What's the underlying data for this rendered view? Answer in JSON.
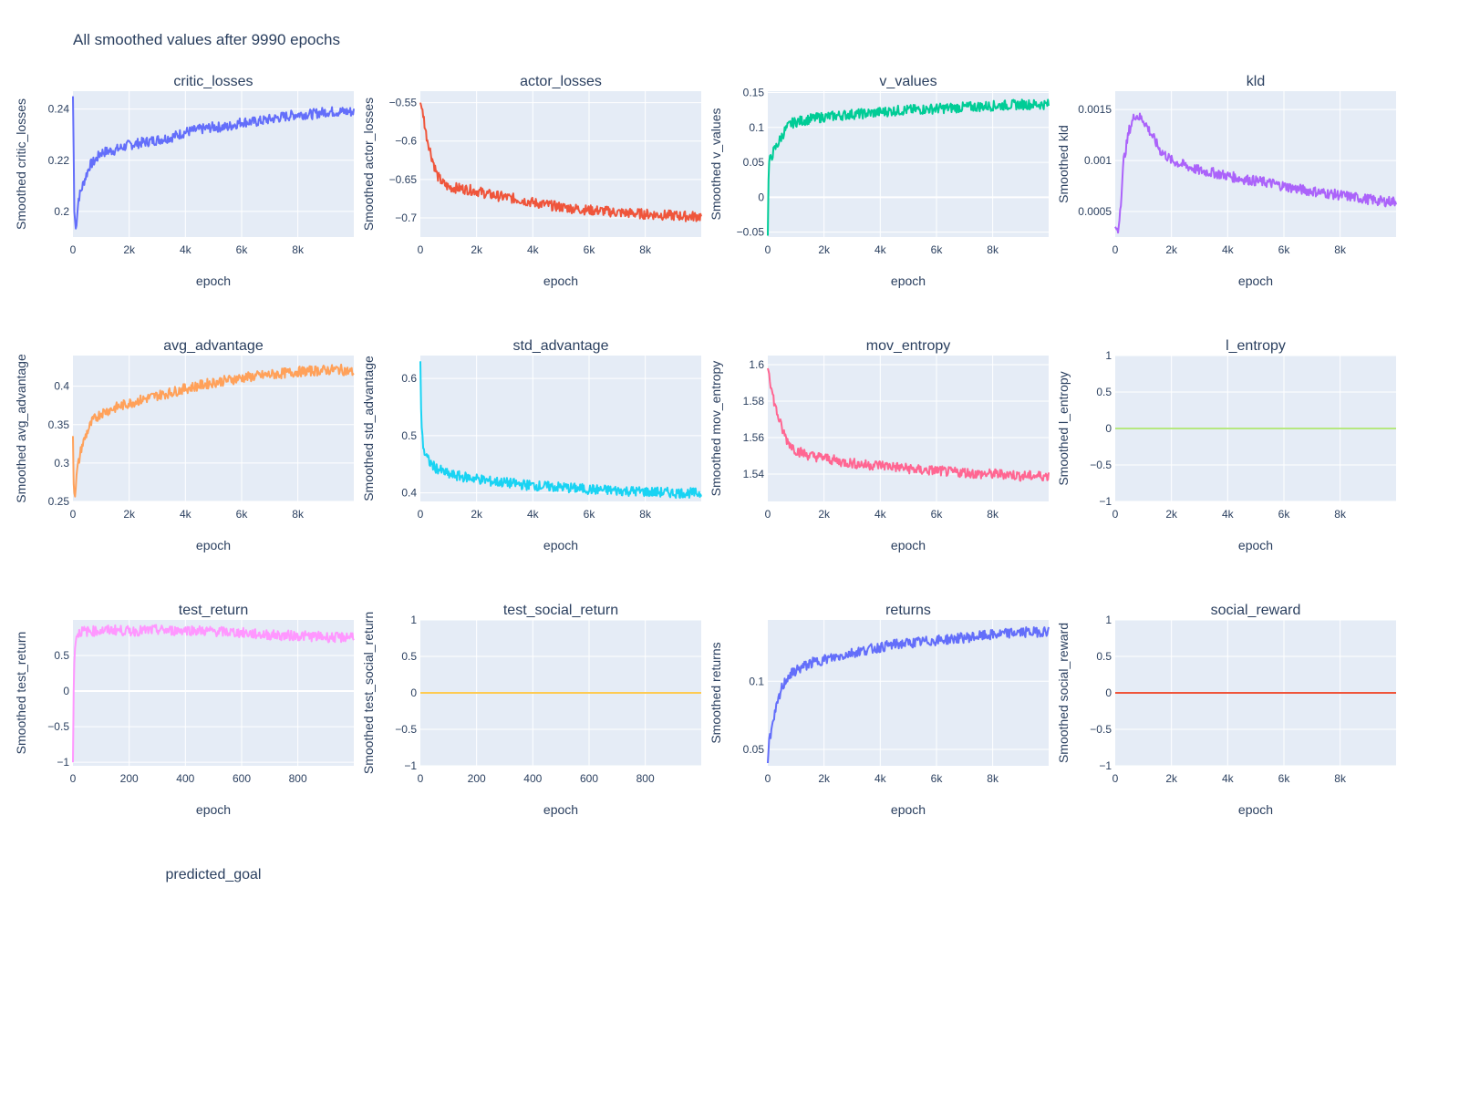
{
  "title": "All smoothed values after 9990 epochs",
  "chart_data": [
    {
      "type": "line",
      "title": "critic_losses",
      "xlabel": "epoch",
      "ylabel": "Smoothed critic_losses",
      "color": "#636efa",
      "xlim": [
        0,
        9990
      ],
      "ylim": [
        0.19,
        0.247
      ],
      "xticks": [
        0,
        2000,
        4000,
        6000,
        8000
      ],
      "xtick_labels": [
        "0",
        "2k",
        "4k",
        "6k",
        "8k"
      ],
      "yticks": [
        0.2,
        0.22,
        0.24
      ],
      "ytick_labels": [
        "0.2",
        "0.22",
        "0.24"
      ],
      "series": [
        {
          "x": [
            0,
            50,
            100,
            200,
            400,
            600,
            800,
            1000,
            1500,
            2000,
            2500,
            3000,
            3500,
            4000,
            4500,
            5000,
            5500,
            6000,
            6500,
            7000,
            7500,
            8000,
            8500,
            9000,
            9500,
            9990
          ],
          "y": [
            0.245,
            0.2,
            0.193,
            0.205,
            0.212,
            0.218,
            0.22,
            0.223,
            0.224,
            0.226,
            0.227,
            0.228,
            0.229,
            0.231,
            0.232,
            0.233,
            0.233,
            0.235,
            0.235,
            0.236,
            0.237,
            0.238,
            0.238,
            0.239,
            0.239,
            0.239
          ]
        }
      ]
    },
    {
      "type": "line",
      "title": "actor_losses",
      "xlabel": "epoch",
      "ylabel": "Smoothed actor_losses",
      "color": "#EF553B",
      "xlim": [
        0,
        9990
      ],
      "ylim": [
        -0.725,
        -0.535
      ],
      "xticks": [
        0,
        2000,
        4000,
        6000,
        8000
      ],
      "xtick_labels": [
        "0",
        "2k",
        "4k",
        "6k",
        "8k"
      ],
      "yticks": [
        -0.55,
        -0.6,
        -0.65,
        -0.7
      ],
      "ytick_labels": [
        "−0.55",
        "−0.6",
        "−0.65",
        "−0.7"
      ],
      "series": [
        {
          "x": [
            0,
            100,
            200,
            400,
            600,
            800,
            1000,
            1500,
            2000,
            2500,
            3000,
            3500,
            4000,
            4500,
            5000,
            5500,
            6000,
            6500,
            7000,
            7500,
            8000,
            8500,
            9000,
            9500,
            9990
          ],
          "y": [
            -0.55,
            -0.565,
            -0.59,
            -0.62,
            -0.645,
            -0.655,
            -0.66,
            -0.662,
            -0.665,
            -0.67,
            -0.673,
            -0.676,
            -0.68,
            -0.683,
            -0.686,
            -0.688,
            -0.69,
            -0.691,
            -0.693,
            -0.694,
            -0.695,
            -0.696,
            -0.697,
            -0.698,
            -0.698
          ]
        }
      ]
    },
    {
      "type": "line",
      "title": "v_values",
      "xlabel": "epoch",
      "ylabel": "Smoothed v_values",
      "color": "#00cc96",
      "xlim": [
        0,
        9990
      ],
      "ylim": [
        -0.057,
        0.152
      ],
      "xticks": [
        0,
        2000,
        4000,
        6000,
        8000
      ],
      "xtick_labels": [
        "0",
        "2k",
        "4k",
        "6k",
        "8k"
      ],
      "yticks": [
        0.15,
        0.1,
        0.05,
        0,
        -0.05
      ],
      "ytick_labels": [
        "0.15",
        "0.1",
        "0.05",
        "0",
        "−0.05"
      ],
      "series": [
        {
          "x": [
            0,
            20,
            50,
            100,
            200,
            400,
            600,
            800,
            1000,
            1500,
            2000,
            2500,
            3000,
            3500,
            4000,
            4500,
            5000,
            5500,
            6000,
            6500,
            7000,
            7500,
            8000,
            8500,
            9000,
            9500,
            9990
          ],
          "y": [
            -0.055,
            0.02,
            0.05,
            0.055,
            0.065,
            0.08,
            0.095,
            0.105,
            0.108,
            0.112,
            0.115,
            0.117,
            0.119,
            0.12,
            0.122,
            0.124,
            0.125,
            0.126,
            0.127,
            0.128,
            0.129,
            0.13,
            0.131,
            0.132,
            0.133,
            0.133,
            0.133
          ]
        }
      ]
    },
    {
      "type": "line",
      "title": "kld",
      "xlabel": "epoch",
      "ylabel": "Smoothed kld",
      "color": "#ab63fa",
      "xlim": [
        0,
        9990
      ],
      "ylim": [
        0.00025,
        0.00168
      ],
      "xticks": [
        0,
        2000,
        4000,
        6000,
        8000
      ],
      "xtick_labels": [
        "0",
        "2k",
        "4k",
        "6k",
        "8k"
      ],
      "yticks": [
        0.0015,
        0.001,
        0.0005
      ],
      "ytick_labels": [
        "0.0015",
        "0.001",
        "0.0005"
      ],
      "series": [
        {
          "x": [
            0,
            100,
            200,
            300,
            500,
            700,
            1000,
            1300,
            1600,
            2000,
            2500,
            3000,
            3500,
            4000,
            4500,
            5000,
            5500,
            6000,
            6500,
            7000,
            7500,
            8000,
            8500,
            9000,
            9500,
            9990
          ],
          "y": [
            0.00035,
            0.0003,
            0.0006,
            0.001,
            0.0013,
            0.00145,
            0.0014,
            0.00125,
            0.0011,
            0.001,
            0.00095,
            0.0009,
            0.00088,
            0.00085,
            0.00082,
            0.0008,
            0.00078,
            0.00075,
            0.00072,
            0.0007,
            0.00068,
            0.00066,
            0.00064,
            0.00062,
            0.0006,
            0.0006
          ]
        }
      ]
    },
    {
      "type": "line",
      "title": "avg_advantage",
      "xlabel": "epoch",
      "ylabel": "Smoothed avg_advantage",
      "color": "#FFA15A",
      "xlim": [
        0,
        9990
      ],
      "ylim": [
        0.25,
        0.44
      ],
      "xticks": [
        0,
        2000,
        4000,
        6000,
        8000
      ],
      "xtick_labels": [
        "0",
        "2k",
        "4k",
        "6k",
        "8k"
      ],
      "yticks": [
        0.4,
        0.35,
        0.3,
        0.25
      ],
      "ytick_labels": [
        "0.4",
        "0.35",
        "0.3",
        "0.25"
      ],
      "series": [
        {
          "x": [
            0,
            30,
            80,
            150,
            300,
            500,
            700,
            1000,
            1500,
            2000,
            2500,
            3000,
            3500,
            4000,
            4500,
            5000,
            5500,
            6000,
            6500,
            7000,
            7500,
            8000,
            8500,
            9000,
            9500,
            9990
          ],
          "y": [
            0.335,
            0.26,
            0.262,
            0.29,
            0.32,
            0.34,
            0.355,
            0.365,
            0.372,
            0.378,
            0.383,
            0.388,
            0.392,
            0.397,
            0.401,
            0.405,
            0.408,
            0.411,
            0.413,
            0.415,
            0.417,
            0.419,
            0.42,
            0.421,
            0.422,
            0.418
          ]
        }
      ]
    },
    {
      "type": "line",
      "title": "std_advantage",
      "xlabel": "epoch",
      "ylabel": "Smoothed std_advantage",
      "color": "#19d3f3",
      "xlim": [
        0,
        9990
      ],
      "ylim": [
        0.385,
        0.64
      ],
      "xticks": [
        0,
        2000,
        4000,
        6000,
        8000
      ],
      "xtick_labels": [
        "0",
        "2k",
        "4k",
        "6k",
        "8k"
      ],
      "yticks": [
        0.6,
        0.5,
        0.4
      ],
      "ytick_labels": [
        "0.6",
        "0.5",
        "0.4"
      ],
      "series": [
        {
          "x": [
            0,
            30,
            80,
            150,
            300,
            500,
            800,
            1000,
            1500,
            2000,
            2500,
            3000,
            3500,
            4000,
            4500,
            5000,
            5500,
            6000,
            6500,
            7000,
            7500,
            8000,
            8500,
            9000,
            9500,
            9990
          ],
          "y": [
            0.63,
            0.53,
            0.49,
            0.47,
            0.455,
            0.445,
            0.437,
            0.432,
            0.428,
            0.425,
            0.42,
            0.418,
            0.415,
            0.413,
            0.411,
            0.41,
            0.408,
            0.406,
            0.405,
            0.404,
            0.403,
            0.402,
            0.401,
            0.4,
            0.4,
            0.399
          ]
        }
      ]
    },
    {
      "type": "line",
      "title": "mov_entropy",
      "xlabel": "epoch",
      "ylabel": "Smoothed mov_entropy",
      "color": "#FF6692",
      "xlim": [
        0,
        9990
      ],
      "ylim": [
        1.525,
        1.605
      ],
      "xticks": [
        0,
        2000,
        4000,
        6000,
        8000
      ],
      "xtick_labels": [
        "0",
        "2k",
        "4k",
        "6k",
        "8k"
      ],
      "yticks": [
        1.6,
        1.58,
        1.56,
        1.54
      ],
      "ytick_labels": [
        "1.6",
        "1.58",
        "1.56",
        "1.54"
      ],
      "series": [
        {
          "x": [
            0,
            50,
            150,
            300,
            500,
            700,
            1000,
            1500,
            2000,
            2500,
            3000,
            3500,
            4000,
            4500,
            5000,
            5500,
            6000,
            6500,
            7000,
            7500,
            8000,
            8500,
            9000,
            9500,
            9990
          ],
          "y": [
            1.598,
            1.595,
            1.585,
            1.575,
            1.565,
            1.558,
            1.553,
            1.55,
            1.549,
            1.547,
            1.546,
            1.545,
            1.545,
            1.544,
            1.543,
            1.542,
            1.542,
            1.541,
            1.541,
            1.54,
            1.54,
            1.54,
            1.539,
            1.539,
            1.539
          ]
        }
      ]
    },
    {
      "type": "line",
      "title": "l_entropy",
      "xlabel": "epoch",
      "ylabel": "Smoothed l_entropy",
      "color": "#B6E880",
      "xlim": [
        0,
        9990
      ],
      "ylim": [
        -1,
        1
      ],
      "xticks": [
        0,
        2000,
        4000,
        6000,
        8000
      ],
      "xtick_labels": [
        "0",
        "2k",
        "4k",
        "6k",
        "8k"
      ],
      "yticks": [
        1,
        0.5,
        0,
        -0.5,
        -1
      ],
      "ytick_labels": [
        "1",
        "0.5",
        "0",
        "−0.5",
        "−1"
      ],
      "series": [
        {
          "x": [
            0,
            9990
          ],
          "y": [
            0,
            0
          ]
        }
      ]
    },
    {
      "type": "line",
      "title": "test_return",
      "xlabel": "epoch",
      "ylabel": "Smoothed test_return",
      "color": "#FF97FF",
      "xlim": [
        0,
        999
      ],
      "ylim": [
        -1.05,
        1.0
      ],
      "xticks": [
        0,
        200,
        400,
        600,
        800
      ],
      "xtick_labels": [
        "0",
        "200",
        "400",
        "600",
        "800"
      ],
      "yticks": [
        0.5,
        0,
        -0.5,
        -1
      ],
      "ytick_labels": [
        "0.5",
        "0",
        "−0.5",
        "−1"
      ],
      "series": [
        {
          "x": [
            0,
            3,
            8,
            15,
            30,
            60,
            100,
            150,
            200,
            250,
            300,
            350,
            400,
            450,
            500,
            550,
            600,
            650,
            700,
            750,
            800,
            850,
            900,
            950,
            999
          ],
          "y": [
            -1.0,
            0.2,
            0.7,
            0.8,
            0.84,
            0.84,
            0.85,
            0.86,
            0.84,
            0.85,
            0.86,
            0.85,
            0.86,
            0.85,
            0.84,
            0.83,
            0.82,
            0.8,
            0.79,
            0.78,
            0.78,
            0.77,
            0.76,
            0.75,
            0.78
          ]
        }
      ]
    },
    {
      "type": "line",
      "title": "test_social_return",
      "xlabel": "epoch",
      "ylabel": "Smoothed test_social_return",
      "color": "#FECB52",
      "xlim": [
        0,
        999
      ],
      "ylim": [
        -1,
        1
      ],
      "xticks": [
        0,
        200,
        400,
        600,
        800
      ],
      "xtick_labels": [
        "0",
        "200",
        "400",
        "600",
        "800"
      ],
      "yticks": [
        1,
        0.5,
        0,
        -0.5,
        -1
      ],
      "ytick_labels": [
        "1",
        "0.5",
        "0",
        "−0.5",
        "−1"
      ],
      "series": [
        {
          "x": [
            0,
            999
          ],
          "y": [
            0,
            0
          ]
        }
      ]
    },
    {
      "type": "line",
      "title": "returns",
      "xlabel": "epoch",
      "ylabel": "Smoothed returns",
      "color": "#636efa",
      "xlim": [
        0,
        9990
      ],
      "ylim": [
        0.038,
        0.145
      ],
      "xticks": [
        0,
        2000,
        4000,
        6000,
        8000
      ],
      "xtick_labels": [
        "0",
        "2k",
        "4k",
        "6k",
        "8k"
      ],
      "yticks": [
        0.1,
        0.05
      ],
      "ytick_labels": [
        "0.1",
        "0.05"
      ],
      "series": [
        {
          "x": [
            0,
            50,
            150,
            300,
            500,
            700,
            1000,
            1500,
            2000,
            2500,
            3000,
            3500,
            4000,
            4500,
            5000,
            5500,
            6000,
            6500,
            7000,
            7500,
            8000,
            8500,
            9000,
            9500,
            9990
          ],
          "y": [
            0.04,
            0.058,
            0.065,
            0.08,
            0.095,
            0.103,
            0.108,
            0.113,
            0.116,
            0.118,
            0.121,
            0.123,
            0.125,
            0.127,
            0.128,
            0.129,
            0.13,
            0.131,
            0.132,
            0.133,
            0.134,
            0.135,
            0.136,
            0.136,
            0.137
          ]
        }
      ]
    },
    {
      "type": "line",
      "title": "social_reward",
      "xlabel": "epoch",
      "ylabel": "Smoothed social_reward",
      "color": "#EF553B",
      "xlim": [
        0,
        9990
      ],
      "ylim": [
        -1,
        1
      ],
      "xticks": [
        0,
        2000,
        4000,
        6000,
        8000
      ],
      "xtick_labels": [
        "0",
        "2k",
        "4k",
        "6k",
        "8k"
      ],
      "yticks": [
        1,
        0.5,
        0,
        -0.5,
        -1
      ],
      "ytick_labels": [
        "1",
        "0.5",
        "0",
        "−0.5",
        "−1"
      ],
      "series": [
        {
          "x": [
            0,
            9990
          ],
          "y": [
            0,
            0
          ]
        }
      ]
    },
    {
      "type": "line",
      "title": "predicted_goal",
      "series": []
    }
  ]
}
